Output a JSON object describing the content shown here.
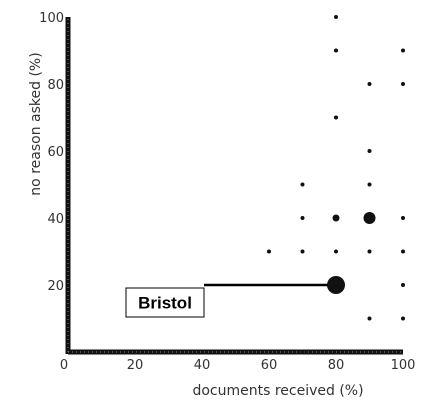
{
  "chart_data": {
    "type": "scatter",
    "title": "",
    "xlabel": "documents received (%)",
    "ylabel": "no reason asked (%)",
    "xlim": [
      0,
      100
    ],
    "ylim": [
      0,
      100
    ],
    "x_ticks": [
      0,
      20,
      40,
      60,
      80,
      100
    ],
    "y_ticks": [
      0,
      20,
      40,
      60,
      80,
      100
    ],
    "grid": false,
    "legend": "none",
    "marker_color": "#111111",
    "points": [
      {
        "x": 80,
        "y": 100,
        "size": "small"
      },
      {
        "x": 80,
        "y": 90,
        "size": "small"
      },
      {
        "x": 100,
        "y": 90,
        "size": "small"
      },
      {
        "x": 90,
        "y": 80,
        "size": "small"
      },
      {
        "x": 100,
        "y": 80,
        "size": "small"
      },
      {
        "x": 80,
        "y": 70,
        "size": "small"
      },
      {
        "x": 90,
        "y": 60,
        "size": "small"
      },
      {
        "x": 70,
        "y": 50,
        "size": "small"
      },
      {
        "x": 90,
        "y": 50,
        "size": "small"
      },
      {
        "x": 70,
        "y": 40,
        "size": "small"
      },
      {
        "x": 80,
        "y": 40,
        "size": "medium"
      },
      {
        "x": 90,
        "y": 40,
        "size": "large"
      },
      {
        "x": 100,
        "y": 40,
        "size": "small"
      },
      {
        "x": 60,
        "y": 30,
        "size": "small"
      },
      {
        "x": 70,
        "y": 30,
        "size": "small"
      },
      {
        "x": 80,
        "y": 30,
        "size": "small"
      },
      {
        "x": 90,
        "y": 30,
        "size": "small"
      },
      {
        "x": 100,
        "y": 30,
        "size": "small"
      },
      {
        "x": 80,
        "y": 20,
        "size": "xlarge"
      },
      {
        "x": 100,
        "y": 20,
        "size": "small"
      },
      {
        "x": 100,
        "y": 10,
        "size": "small"
      },
      {
        "x": 90,
        "y": 10,
        "size": "small"
      },
      {
        "x": 70,
        "y": 0,
        "size": "small"
      }
    ],
    "annotations": [
      {
        "text": "Bristol",
        "x": 80,
        "y": 20
      }
    ]
  }
}
